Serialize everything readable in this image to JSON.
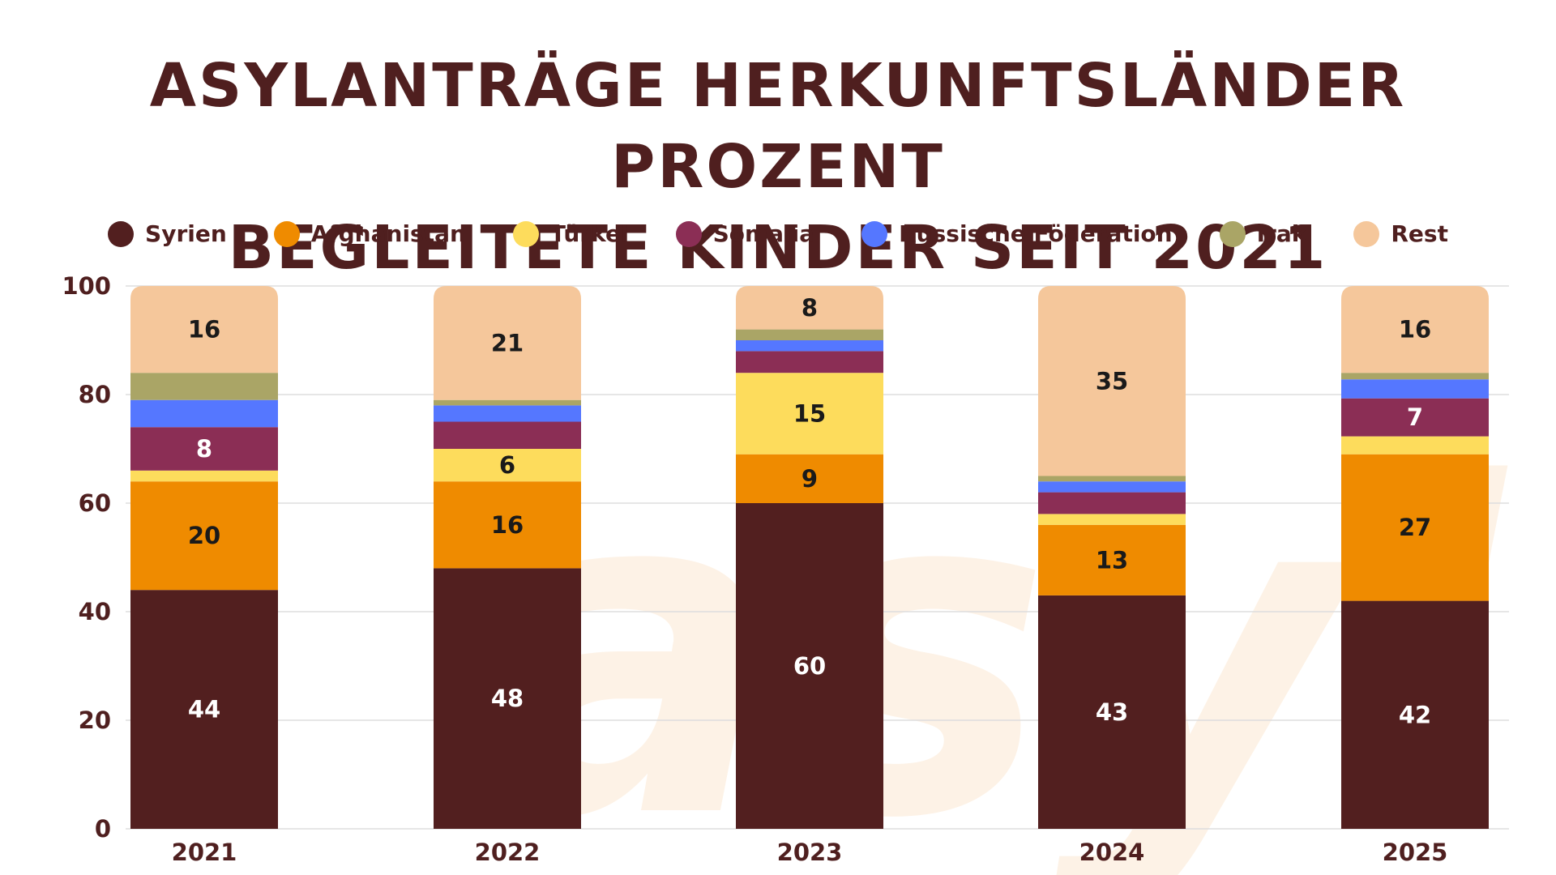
{
  "title": {
    "line1": "ASYLANTRÄGE HERKUNFTSLÄNDER PROZENT",
    "line2": "BEGLEITETE KINDER SEIT 2021"
  },
  "colors": {
    "text": "#4f1f1f",
    "grid": "#dddddd",
    "watermark": "#fdeede"
  },
  "chart_data": {
    "type": "bar",
    "stacked": true,
    "categories": [
      "2021",
      "2022",
      "2023",
      "2024",
      "2025"
    ],
    "ylim": [
      0,
      100
    ],
    "yticks": [
      0,
      20,
      40,
      60,
      80,
      100
    ],
    "grid": true,
    "legend_position": "top",
    "series": [
      {
        "name": "Syrien",
        "color": "#521f1f",
        "values": [
          44,
          48,
          60,
          43,
          42
        ],
        "labels": [
          "44",
          "48",
          "60",
          "43",
          "42"
        ],
        "label_color": "#ffffff"
      },
      {
        "name": "Afghanistan",
        "color": "#ef8b00",
        "values": [
          20,
          16,
          9,
          13,
          27
        ],
        "labels": [
          "20",
          "16",
          "9",
          "13",
          "27"
        ],
        "label_color": "#1a1a1a"
      },
      {
        "name": "Türkei",
        "color": "#fddc5c",
        "values": [
          2,
          6,
          15,
          2,
          3.3
        ],
        "labels": [
          "",
          "6",
          "15",
          "",
          ""
        ],
        "label_color": "#1a1a1a"
      },
      {
        "name": "Somalia",
        "color": "#8b2e55",
        "values": [
          8,
          5,
          4,
          4,
          7
        ],
        "labels": [
          "8",
          "",
          "",
          "",
          "7"
        ],
        "label_color": "#ffffff"
      },
      {
        "name": "Russische Föderation",
        "color": "#5577ff",
        "values": [
          5,
          3,
          2,
          2,
          3.5
        ],
        "labels": [
          "",
          "",
          "",
          "",
          ""
        ],
        "label_color": "#ffffff"
      },
      {
        "name": "Irak",
        "color": "#aaa566",
        "values": [
          5,
          1,
          2,
          1,
          1.2
        ],
        "labels": [
          "",
          "",
          "",
          "",
          ""
        ],
        "label_color": "#ffffff"
      },
      {
        "name": "Rest",
        "color": "#f5c79b",
        "values": [
          16,
          21,
          8,
          35,
          16
        ],
        "labels": [
          "16",
          "21",
          "8",
          "35",
          "16"
        ],
        "label_color": "#1a1a1a"
      }
    ]
  }
}
